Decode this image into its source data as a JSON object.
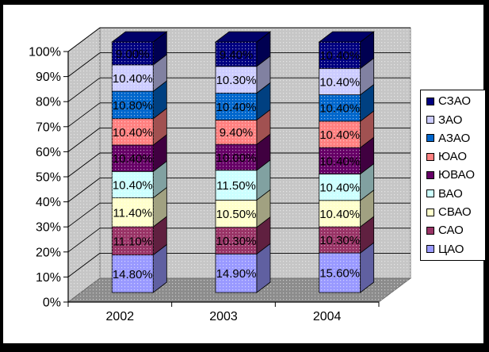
{
  "chart_data": {
    "type": "bar",
    "variant": "3d-percent-stacked-column",
    "title": "",
    "xlabel": "",
    "ylabel": "",
    "categories": [
      "2002",
      "2003",
      "2004"
    ],
    "series": [
      {
        "name": "ЦАО",
        "color": "#9999FF",
        "values": [
          14.8,
          14.9,
          15.6
        ],
        "labels": [
          "14.80%",
          "14.90%",
          "15.60%"
        ]
      },
      {
        "name": "САО",
        "color": "#993366",
        "values": [
          11.1,
          10.3,
          10.3
        ],
        "labels": [
          "11.10%",
          "10.30%",
          "10.30%"
        ]
      },
      {
        "name": "СВАО",
        "color": "#FFFFCC",
        "values": [
          11.4,
          10.5,
          10.4
        ],
        "labels": [
          "11.40%",
          "10.50%",
          "10.40%"
        ]
      },
      {
        "name": "ВАО",
        "color": "#CCFFFF",
        "values": [
          10.4,
          11.5,
          10.4
        ],
        "labels": [
          "10.40%",
          "11.50%",
          "10.40%"
        ]
      },
      {
        "name": "ЮВАО",
        "color": "#660066",
        "values": [
          10.4,
          10.0,
          10.4
        ],
        "labels": [
          "10.40%",
          "10.00%",
          "10.40%"
        ]
      },
      {
        "name": "ЮАО",
        "color": "#FF8080",
        "values": [
          10.4,
          9.4,
          10.4
        ],
        "labels": [
          "10.40%",
          "9.40%",
          "10.40%"
        ]
      },
      {
        "name": "АЗАО",
        "color": "#0066CC",
        "values": [
          10.8,
          10.4,
          10.4
        ],
        "labels": [
          "10.80%",
          "10.40%",
          "10.40%"
        ]
      },
      {
        "name": "ЗАО",
        "color": "#CCCCFF",
        "values": [
          10.4,
          10.3,
          10.4
        ],
        "labels": [
          "10.40%",
          "10.30%",
          "10.40%"
        ]
      },
      {
        "name": "СЗАО",
        "color": "#000080",
        "values": [
          9.0,
          9.4,
          10.4
        ],
        "labels": [
          "9.00%",
          "9.40%",
          "10.40%"
        ]
      }
    ],
    "y_ticks": [
      "0%",
      "10%",
      "20%",
      "30%",
      "40%",
      "50%",
      "60%",
      "70%",
      "80%",
      "90%",
      "100%"
    ],
    "ylim": [
      0,
      100
    ],
    "grid": true,
    "legend_position": "right",
    "legend_top_to_bottom": [
      "СЗАО",
      "ЗАО",
      "АЗАО",
      "ЮАО",
      "ЮВАО",
      "ВАО",
      "СВАО",
      "САО",
      "ЦАО"
    ]
  },
  "colors": {
    "frame": "#000000",
    "background": "#FFFFFF",
    "wall": "#C6C6C6",
    "floor": "#8C8C8C",
    "gridline": "#000000",
    "text": "#000000"
  }
}
